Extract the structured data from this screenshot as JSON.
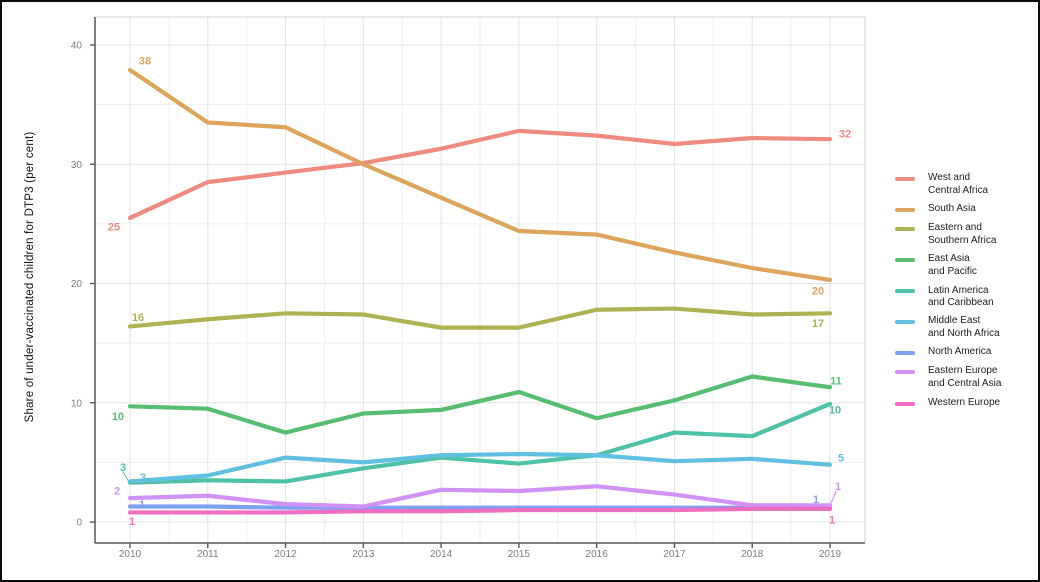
{
  "chart_data": {
    "type": "line",
    "title": "",
    "xlabel": "",
    "ylabel": "Share of under-vaccinated children for DTP3 (per cent)",
    "x": [
      2010,
      2011,
      2012,
      2013,
      2014,
      2015,
      2016,
      2017,
      2018,
      2019
    ],
    "ylim": [
      0,
      40
    ],
    "yticks": [
      0,
      10,
      20,
      30,
      40
    ],
    "grid": "major and minor, light gray on white",
    "legend_position": "right",
    "series": [
      {
        "name": "West and Central Africa",
        "legend_lines": [
          "West and",
          "Central Africa"
        ],
        "color": "#ef8a7f",
        "values": [
          25.5,
          28.5,
          29.3,
          30.1,
          31.3,
          32.8,
          32.4,
          31.7,
          32.2,
          32.1
        ],
        "start_label": "25",
        "end_label": "32"
      },
      {
        "name": "South Asia",
        "legend_lines": [
          "South Asia"
        ],
        "color": "#dda45c",
        "values": [
          37.9,
          33.5,
          33.1,
          30.0,
          27.2,
          24.4,
          24.1,
          22.6,
          21.3,
          20.3
        ],
        "start_label": "38",
        "end_label": "20"
      },
      {
        "name": "Eastern and Southern Africa",
        "legend_lines": [
          "Eastern and",
          "Southern Africa"
        ],
        "color": "#adb252",
        "values": [
          16.4,
          17.0,
          17.5,
          17.4,
          16.3,
          16.3,
          17.8,
          17.9,
          17.4,
          17.5
        ],
        "start_label": "16",
        "end_label": "17"
      },
      {
        "name": "East Asia and Pacific",
        "legend_lines": [
          "East Asia",
          "and Pacific"
        ],
        "color": "#57be71",
        "values": [
          9.7,
          9.5,
          7.5,
          9.1,
          9.4,
          10.9,
          8.7,
          10.2,
          12.2,
          11.3
        ],
        "start_label": "10",
        "end_label": "11"
      },
      {
        "name": "Latin America and Caribbean",
        "legend_lines": [
          "Latin America",
          "and Caribbean"
        ],
        "color": "#4ec2a6",
        "values": [
          3.3,
          3.5,
          3.4,
          4.5,
          5.4,
          4.9,
          5.6,
          7.5,
          7.2,
          9.9
        ],
        "start_label": "3",
        "end_label": "10"
      },
      {
        "name": "Middle East and North Africa",
        "legend_lines": [
          "Middle East",
          "and North Africa"
        ],
        "color": "#5fc0e0",
        "values": [
          3.4,
          3.9,
          5.4,
          5.0,
          5.6,
          5.7,
          5.6,
          5.1,
          5.3,
          4.8
        ],
        "start_label": "3",
        "end_label": "5"
      },
      {
        "name": "North America",
        "legend_lines": [
          "North America"
        ],
        "color": "#7f9ff0",
        "values": [
          1.3,
          1.3,
          1.2,
          1.2,
          1.2,
          1.2,
          1.2,
          1.2,
          1.2,
          1.2
        ],
        "start_label": "1",
        "end_label": "1"
      },
      {
        "name": "Eastern Europe and Central Asia",
        "legend_lines": [
          "Eastern Europe",
          "and Central Asia"
        ],
        "color": "#d191f5",
        "values": [
          2.0,
          2.2,
          1.5,
          1.3,
          2.7,
          2.6,
          3.0,
          2.3,
          1.4,
          1.4
        ],
        "start_label": "2",
        "end_label": "1"
      },
      {
        "name": "Western Europe",
        "legend_lines": [
          "Western Europe"
        ],
        "color": "#ee6ec1",
        "values": [
          0.8,
          0.8,
          0.8,
          0.9,
          0.9,
          1.0,
          1.0,
          1.0,
          1.1,
          1.1
        ],
        "start_label": "1",
        "end_label": "1"
      }
    ]
  }
}
